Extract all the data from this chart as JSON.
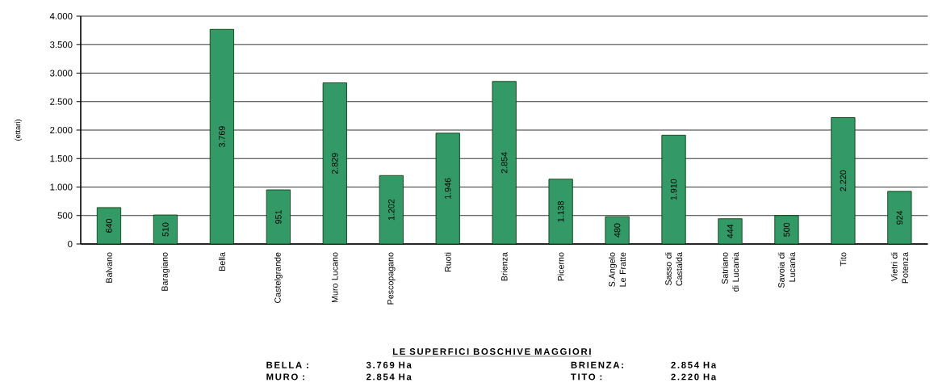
{
  "chart_data": {
    "type": "bar",
    "ylabel": "(ettari)",
    "categories": [
      "Balvano",
      "Baragiano",
      "Bella",
      "Castelgrande",
      "Muro Lucano",
      "Pescopagano",
      "Ruoti",
      "Brienza",
      "Picerno",
      "S.Angelo Le Fratte",
      "Sasso di Castalda",
      "Satriano di Lucania",
      "Savoia di Lucania",
      "Tito",
      "Vietri di Potenza"
    ],
    "values": [
      640,
      510,
      3769,
      951,
      2829,
      1202,
      1946,
      2854,
      1138,
      480,
      1910,
      444,
      500,
      2220,
      924
    ],
    "value_labels": [
      "640",
      "510",
      "3.769",
      "951",
      "2.829",
      "1.202",
      "1.946",
      "2.854",
      "1.138",
      "480",
      "1.910",
      "444",
      "500",
      "2.220",
      "924"
    ],
    "color": "#339966",
    "ylim": [
      0,
      4000
    ],
    "yticks": [
      0,
      500,
      {
        "value": 1000,
        "label": "1.000"
      },
      {
        "value": 1500,
        "label": "1.500"
      },
      {
        "value": 2000,
        "label": "2.000"
      },
      {
        "value": 2500,
        "label": "2.500"
      },
      {
        "value": 3000,
        "label": "3.000"
      },
      {
        "value": 3500,
        "label": "3.500"
      },
      {
        "value": 4000,
        "label": "4.000"
      }
    ],
    "grid": "y",
    "annotations": [
      "LE SUPERFICI BOSCHIVE MAGGIORI",
      "BELLA :",
      "3.769 Ha",
      "BRIENZA:",
      "2.854 Ha",
      "MURO  :",
      "2.854 Ha",
      "TITO :",
      "2.220 Ha"
    ]
  }
}
